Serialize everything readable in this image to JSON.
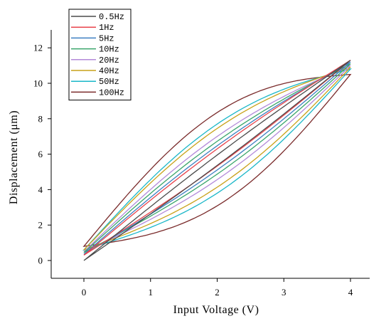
{
  "chart_data": {
    "type": "line",
    "title": "",
    "xlabel": "Input Voltage (V)",
    "ylabel": "Displacement (μm)",
    "xlim": [
      -0.5,
      4.5
    ],
    "ylim": [
      -1,
      13.5
    ],
    "xticks": [
      0,
      1,
      2,
      3,
      4
    ],
    "yticks": [
      0,
      2,
      4,
      6,
      8,
      10,
      12
    ],
    "grid": false,
    "legend_position": "top-left",
    "series": [
      {
        "name": "0.5Hz",
        "color": "#4b4b4b",
        "peak_y": 11.3,
        "base_y": 0.0,
        "loop_width": 0.3
      },
      {
        "name": "1Hz",
        "color": "#e8434b",
        "peak_y": 11.3,
        "base_y": 0.3,
        "loop_width": 0.5
      },
      {
        "name": "5Hz",
        "color": "#3d7fc1",
        "peak_y": 11.2,
        "base_y": 0.35,
        "loop_width": 0.7
      },
      {
        "name": "10Hz",
        "color": "#3aa56b",
        "peak_y": 11.1,
        "base_y": 0.45,
        "loop_width": 0.95
      },
      {
        "name": "20Hz",
        "color": "#b38ad9",
        "peak_y": 11.0,
        "base_y": 0.5,
        "loop_width": 1.25
      },
      {
        "name": "40Hz",
        "color": "#c8a21a",
        "peak_y": 10.9,
        "base_y": 0.6,
        "loop_width": 1.7
      },
      {
        "name": "50Hz",
        "color": "#1ab7c8",
        "peak_y": 10.8,
        "base_y": 0.6,
        "loop_width": 2.0
      },
      {
        "name": "100Hz",
        "color": "#7a2b2b",
        "peak_y": 10.5,
        "base_y": 0.8,
        "loop_width": 2.7
      }
    ]
  }
}
